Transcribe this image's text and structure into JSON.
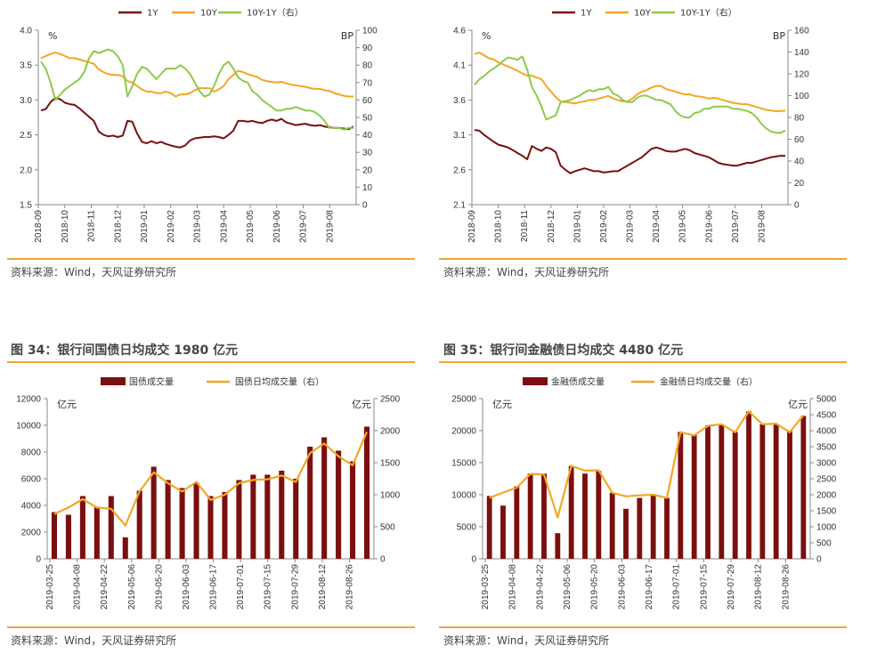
{
  "colors": {
    "dark_red": "#7B0F0F",
    "orange": "#F5A623",
    "green": "#8CCB4B",
    "rule_orange": "#F0A33C",
    "axis": "#888888"
  },
  "source_text": "资料来源：Wind，天风证券研究所",
  "fig34_title": "图 34：银行间国债日均成交 1980 亿元",
  "fig35_title": "图 35：银行间金融债日均成交 4480 亿元",
  "chart_data": [
    {
      "type": "line",
      "title": "",
      "left_unit": "%",
      "right_unit": "BP",
      "y_left_range": [
        1.5,
        4.0
      ],
      "y_left_ticks": [
        "1.5",
        "2.0",
        "2.5",
        "3.0",
        "3.5",
        "4.0"
      ],
      "y_right_range": [
        0,
        100
      ],
      "y_right_ticks": [
        "0",
        "10",
        "20",
        "30",
        "40",
        "50",
        "60",
        "70",
        "80",
        "90",
        "100"
      ],
      "x_ticks": [
        "2018-09",
        "2018-10",
        "2018-11",
        "2018-12",
        "2019-01",
        "2019-02",
        "2019-03",
        "2019-04",
        "2019-05",
        "2019-06",
        "2019-07",
        "2019-08"
      ],
      "series": [
        {
          "name": "1Y",
          "axis": "left",
          "values": [
            2.85,
            2.87,
            2.97,
            3.03,
            3.01,
            2.96,
            2.94,
            2.93,
            2.88,
            2.82,
            2.76,
            2.7,
            2.55,
            2.5,
            2.48,
            2.49,
            2.47,
            2.49,
            2.7,
            2.69,
            2.52,
            2.4,
            2.38,
            2.41,
            2.38,
            2.4,
            2.37,
            2.35,
            2.33,
            2.32,
            2.35,
            2.42,
            2.45,
            2.46,
            2.47,
            2.47,
            2.48,
            2.47,
            2.45,
            2.5,
            2.56,
            2.7,
            2.7,
            2.69,
            2.7,
            2.68,
            2.67,
            2.7,
            2.72,
            2.7,
            2.73,
            2.68,
            2.66,
            2.64,
            2.65,
            2.66,
            2.64,
            2.63,
            2.64,
            2.62,
            2.61,
            2.6,
            2.6,
            2.59,
            2.58,
            2.62
          ]
        },
        {
          "name": "10Y",
          "axis": "left",
          "values": [
            3.6,
            3.63,
            3.66,
            3.68,
            3.66,
            3.63,
            3.6,
            3.6,
            3.58,
            3.56,
            3.54,
            3.52,
            3.44,
            3.4,
            3.37,
            3.36,
            3.36,
            3.34,
            3.27,
            3.25,
            3.2,
            3.15,
            3.12,
            3.12,
            3.1,
            3.1,
            3.12,
            3.1,
            3.05,
            3.08,
            3.08,
            3.1,
            3.14,
            3.17,
            3.17,
            3.17,
            3.12,
            3.15,
            3.2,
            3.3,
            3.36,
            3.42,
            3.4,
            3.37,
            3.35,
            3.33,
            3.29,
            3.27,
            3.26,
            3.25,
            3.26,
            3.24,
            3.22,
            3.21,
            3.2,
            3.19,
            3.17,
            3.16,
            3.16,
            3.14,
            3.13,
            3.1,
            3.08,
            3.06,
            3.05,
            3.05
          ]
        },
        {
          "name": "10Y-1Y（右）",
          "axis": "right",
          "values": [
            82,
            78,
            70,
            60,
            63,
            66,
            68,
            70,
            72,
            76,
            84,
            88,
            87,
            88,
            89,
            88,
            85,
            80,
            62,
            68,
            75,
            79,
            78,
            75,
            72,
            75,
            78,
            78,
            78,
            80,
            78,
            75,
            70,
            65,
            62,
            63,
            68,
            75,
            80,
            82,
            78,
            73,
            71,
            70,
            65,
            63,
            60,
            58,
            56,
            54,
            54,
            55,
            55,
            56,
            55,
            54,
            54,
            53,
            51,
            48,
            44,
            44,
            44,
            43,
            44,
            44
          ]
        }
      ]
    },
    {
      "type": "line",
      "title": "",
      "left_unit": "%",
      "right_unit": "BP",
      "y_left_range": [
        2.1,
        4.6
      ],
      "y_left_ticks": [
        "2.1",
        "2.6",
        "3.1",
        "3.6",
        "4.1",
        "4.6"
      ],
      "y_right_range": [
        0,
        160
      ],
      "y_right_ticks": [
        "0",
        "20",
        "40",
        "60",
        "80",
        "100",
        "120",
        "140",
        "160"
      ],
      "x_ticks": [
        "2018-09",
        "2018-10",
        "2018-11",
        "2018-12",
        "2019-01",
        "2019-02",
        "2019-03",
        "2019-04",
        "2019-05",
        "2019-06",
        "2019-07",
        "2019-08"
      ],
      "series": [
        {
          "name": "1Y",
          "axis": "left",
          "values": [
            3.17,
            3.16,
            3.1,
            3.05,
            3.0,
            2.96,
            2.94,
            2.92,
            2.88,
            2.84,
            2.8,
            2.75,
            2.94,
            2.9,
            2.87,
            2.92,
            2.9,
            2.85,
            2.66,
            2.6,
            2.55,
            2.58,
            2.6,
            2.62,
            2.6,
            2.58,
            2.58,
            2.56,
            2.57,
            2.58,
            2.58,
            2.62,
            2.66,
            2.7,
            2.74,
            2.78,
            2.84,
            2.9,
            2.92,
            2.9,
            2.87,
            2.86,
            2.86,
            2.88,
            2.9,
            2.88,
            2.84,
            2.82,
            2.8,
            2.78,
            2.74,
            2.7,
            2.68,
            2.67,
            2.66,
            2.66,
            2.68,
            2.7,
            2.7,
            2.72,
            2.74,
            2.76,
            2.78,
            2.79,
            2.8,
            2.8
          ]
        },
        {
          "name": "10Y",
          "axis": "left",
          "values": [
            4.26,
            4.28,
            4.24,
            4.2,
            4.18,
            4.14,
            4.11,
            4.08,
            4.05,
            4.02,
            3.98,
            3.95,
            3.95,
            3.92,
            3.9,
            3.8,
            3.72,
            3.64,
            3.58,
            3.57,
            3.56,
            3.55,
            3.57,
            3.58,
            3.6,
            3.6,
            3.62,
            3.64,
            3.66,
            3.62,
            3.6,
            3.58,
            3.58,
            3.62,
            3.68,
            3.72,
            3.74,
            3.78,
            3.8,
            3.8,
            3.76,
            3.74,
            3.72,
            3.7,
            3.68,
            3.68,
            3.66,
            3.65,
            3.64,
            3.62,
            3.63,
            3.62,
            3.6,
            3.58,
            3.56,
            3.55,
            3.54,
            3.54,
            3.52,
            3.5,
            3.48,
            3.46,
            3.45,
            3.44,
            3.44,
            3.45
          ]
        },
        {
          "name": "10Y-1Y（右）",
          "axis": "right",
          "values": [
            110,
            115,
            118,
            122,
            125,
            128,
            132,
            135,
            134,
            133,
            136,
            124,
            108,
            100,
            90,
            78,
            80,
            82,
            94,
            95,
            96,
            98,
            100,
            103,
            105,
            104,
            106,
            106,
            108,
            102,
            100,
            96,
            94,
            94,
            98,
            100,
            100,
            98,
            96,
            96,
            94,
            92,
            86,
            82,
            80,
            80,
            84,
            85,
            88,
            88,
            90,
            90,
            90,
            90,
            88,
            88,
            87,
            86,
            84,
            80,
            74,
            70,
            67,
            66,
            66,
            68
          ]
        }
      ]
    },
    {
      "type": "bar+line",
      "title": "",
      "left_unit": "亿元",
      "right_unit": "亿元",
      "y_left_range": [
        0,
        12000
      ],
      "y_left_ticks": [
        "0",
        "2000",
        "4000",
        "6000",
        "8000",
        "10000",
        "12000"
      ],
      "y_right_range": [
        0,
        2500
      ],
      "y_right_ticks": [
        "0",
        "500",
        "1000",
        "1500",
        "2000",
        "2500"
      ],
      "x_ticks": [
        "2019-03-25",
        "2019-04-08",
        "2019-04-22",
        "2019-05-06",
        "2019-05-20",
        "2019-06-03",
        "2019-06-17",
        "2019-07-01",
        "2019-07-15",
        "2019-07-29",
        "2019-08-12",
        "2019-08-26"
      ],
      "series": [
        {
          "name": "国债成交量",
          "axis": "left",
          "type": "bar",
          "values": [
            3500,
            3300,
            4700,
            3900,
            4700,
            1600,
            5100,
            6900,
            5900,
            5300,
            5700,
            4700,
            5000,
            5900,
            6300,
            6300,
            6600,
            6000,
            8400,
            9100,
            8100,
            7300,
            9900
          ]
        },
        {
          "name": "国债日均成交量（右）",
          "axis": "right",
          "type": "line",
          "values": [
            700,
            800,
            930,
            800,
            780,
            520,
            1050,
            1350,
            1180,
            1050,
            1200,
            920,
            1000,
            1180,
            1230,
            1240,
            1300,
            1200,
            1650,
            1800,
            1600,
            1460,
            1980
          ]
        }
      ]
    },
    {
      "type": "bar+line",
      "title": "",
      "left_unit": "亿元",
      "right_unit": "亿元",
      "y_left_range": [
        0,
        25000
      ],
      "y_left_ticks": [
        "0",
        "5000",
        "10000",
        "15000",
        "20000",
        "25000"
      ],
      "y_right_range": [
        0,
        5000
      ],
      "y_right_ticks": [
        "0",
        "500",
        "1000",
        "1500",
        "2000",
        "2500",
        "3000",
        "3500",
        "4000",
        "4500",
        "5000"
      ],
      "x_ticks": [
        "2019-03-25",
        "2019-04-08",
        "2019-04-22",
        "2019-05-06",
        "2019-05-20",
        "2019-06-03",
        "2019-06-17",
        "2019-07-01",
        "2019-07-15",
        "2019-07-29",
        "2019-08-12",
        "2019-08-26"
      ],
      "series": [
        {
          "name": "金融债成交量",
          "axis": "left",
          "type": "bar",
          "values": [
            9800,
            8300,
            11300,
            13300,
            13300,
            4000,
            14500,
            13300,
            13700,
            10300,
            7800,
            9500,
            10000,
            9500,
            19800,
            19300,
            20800,
            21000,
            19800,
            23000,
            21000,
            21000,
            20000,
            22300
          ]
        },
        {
          "name": "金融债日均成交量（右）",
          "axis": "right",
          "type": "line",
          "values": [
            1900,
            2070,
            2220,
            2650,
            2630,
            1290,
            2900,
            2750,
            2760,
            2060,
            1950,
            1980,
            2000,
            1900,
            3950,
            3850,
            4150,
            4200,
            3950,
            4600,
            4200,
            4220,
            3950,
            4480
          ]
        }
      ]
    }
  ]
}
